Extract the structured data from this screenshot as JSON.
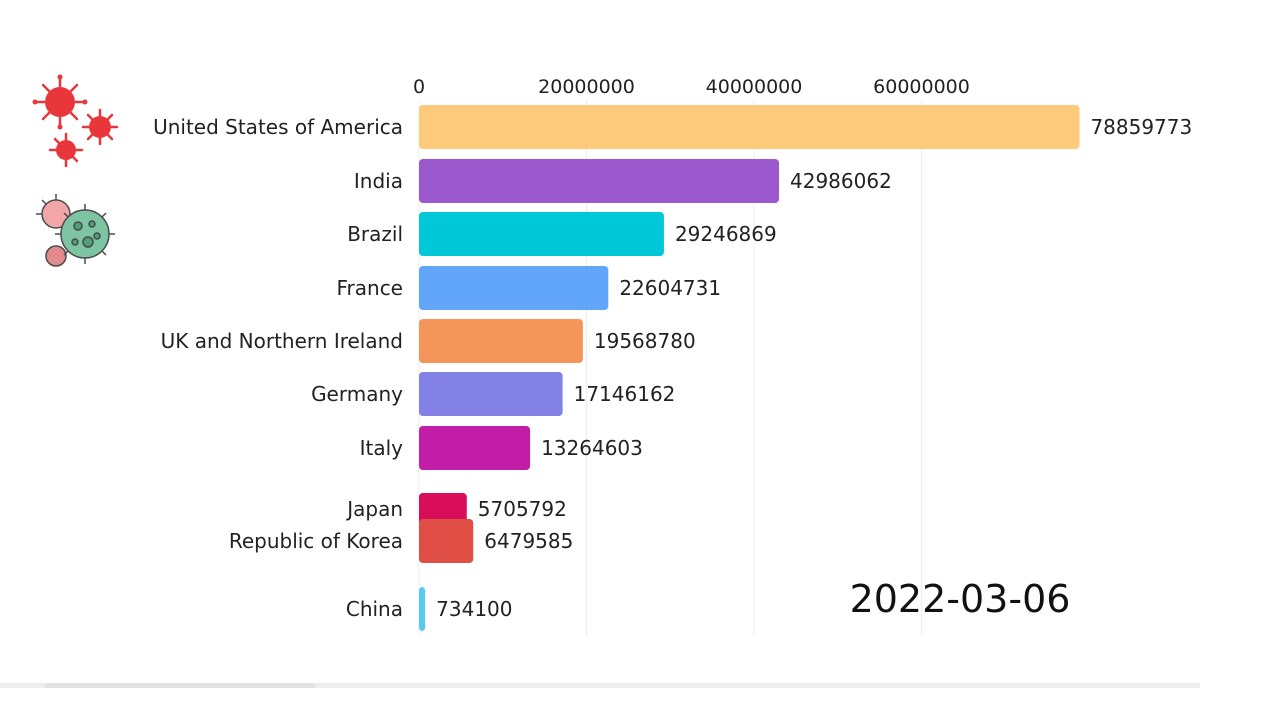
{
  "chart_data": {
    "type": "bar",
    "orientation": "horizontal",
    "date_label": "2022-03-06",
    "x_axis": {
      "position": "top",
      "ticks": [
        0,
        20000000,
        40000000,
        60000000
      ],
      "tick_labels": [
        "0",
        "20000000",
        "40000000",
        "60000000"
      ],
      "range": [
        0,
        80000000
      ]
    },
    "grid": true,
    "bars": [
      {
        "country": "United States of America",
        "value": 78859773,
        "value_label": "78859773",
        "color": "#FDC97B"
      },
      {
        "country": "India",
        "value": 42986062,
        "value_label": "42986062",
        "color": "#9B59CD"
      },
      {
        "country": "Brazil",
        "value": 29246869,
        "value_label": "29246869",
        "color": "#00C8D9"
      },
      {
        "country": "France",
        "value": 22604731,
        "value_label": "22604731",
        "color": "#62A6FA"
      },
      {
        "country": "UK and Northern Ireland",
        "value": 19568780,
        "value_label": "19568780",
        "color": "#F4965A"
      },
      {
        "country": "Germany",
        "value": 17146162,
        "value_label": "17146162",
        "color": "#8380E6"
      },
      {
        "country": "Italy",
        "value": 13264603,
        "value_label": "13264603",
        "color": "#C21DA8"
      },
      {
        "country": "Japan",
        "value": 5705792,
        "value_label": "5705792",
        "color": "#D80E5A"
      },
      {
        "country": "Republic of Korea",
        "value": 6479585,
        "value_label": "6479585",
        "color": "#E04F46"
      },
      {
        "country": "China",
        "value": 734100,
        "value_label": "734100",
        "color": "#5AC8F0"
      }
    ]
  },
  "icons": {
    "top": "red-virus-cluster-icon",
    "bottom": "green-virus-icon"
  }
}
